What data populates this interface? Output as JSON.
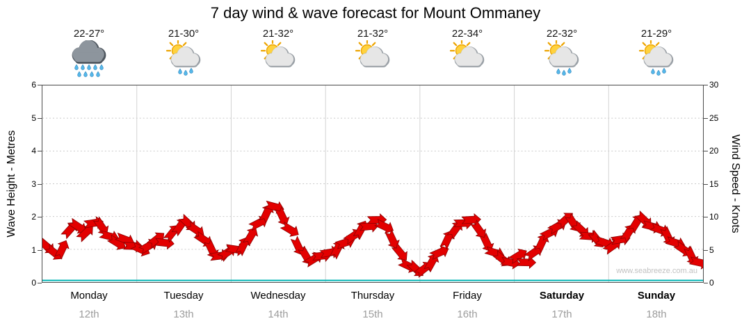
{
  "title": "7 day wind & wave forecast for Mount Ommaney",
  "watermark": "www.seabreeze.com.au",
  "days": [
    {
      "name": "Monday",
      "date": "12th",
      "temp": "22-27°",
      "icon": "rain",
      "bold": false
    },
    {
      "name": "Tuesday",
      "date": "13th",
      "temp": "21-30°",
      "icon": "sun-cloud-rain",
      "bold": false
    },
    {
      "name": "Wednesday",
      "date": "14th",
      "temp": "21-32°",
      "icon": "sun-cloud",
      "bold": false
    },
    {
      "name": "Thursday",
      "date": "15th",
      "temp": "21-32°",
      "icon": "sun-cloud",
      "bold": false
    },
    {
      "name": "Friday",
      "date": "16th",
      "temp": "22-34°",
      "icon": "sun-cloud",
      "bold": false
    },
    {
      "name": "Saturday",
      "date": "17th",
      "temp": "22-32°",
      "icon": "sun-cloud-rain",
      "bold": true
    },
    {
      "name": "Sunday",
      "date": "18th",
      "temp": "21-29°",
      "icon": "sun-cloud-rain",
      "bold": true
    }
  ],
  "axes": {
    "left_label": "Wave Height - Metres",
    "right_label": "Wind Speed - Knots",
    "left_ticks": [
      0,
      1,
      2,
      3,
      4,
      5,
      6
    ],
    "right_ticks": [
      0,
      5,
      10,
      15,
      20,
      25,
      30
    ]
  },
  "chart_data": {
    "type": "line",
    "title": "7 day wind & wave forecast for Mount Ommaney",
    "x_categories": [
      "Monday 12th",
      "Tuesday 13th",
      "Wednesday 14th",
      "Thursday 15th",
      "Friday 16th",
      "Saturday 17th",
      "Sunday 18th"
    ],
    "samples_per_day": 12,
    "left_axis": {
      "label": "Wave Height - Metres",
      "range": [
        0,
        6
      ]
    },
    "right_axis": {
      "label": "Wind Speed - Knots",
      "range": [
        0,
        30
      ]
    },
    "grid": true,
    "legend": false,
    "series": [
      {
        "name": "Wind Speed",
        "unit": "knots",
        "axis": "right",
        "color": "#e30000",
        "style": "wind-arrows",
        "values": [
          5.5,
          4.5,
          5,
          8,
          8.5,
          7.5,
          9,
          8.5,
          7,
          6,
          6.5,
          5.5,
          5,
          5.5,
          6.5,
          6,
          7.5,
          8.5,
          9,
          8,
          6.5,
          5,
          4,
          4.5,
          5,
          5.5,
          7,
          9,
          10.5,
          11.5,
          10,
          8,
          5.5,
          4,
          3.5,
          4,
          4.5,
          5,
          6,
          7,
          8,
          8.5,
          9.5,
          8.5,
          6.5,
          4.5,
          2.5,
          2,
          2,
          3,
          4.5,
          6.5,
          8,
          9,
          9.5,
          8,
          6,
          4.5,
          3.5,
          3,
          4,
          3,
          4.5,
          6,
          7.5,
          8.5,
          9.5,
          9,
          8,
          7,
          6.5,
          6,
          5.5,
          6.5,
          7.5,
          9,
          9.5,
          8.5,
          8,
          7,
          6,
          5,
          4,
          3
        ]
      },
      {
        "name": "Wave Height",
        "unit": "metres",
        "axis": "left",
        "color": "#00b5b5",
        "style": "line",
        "constant_value": 0.05
      }
    ]
  }
}
